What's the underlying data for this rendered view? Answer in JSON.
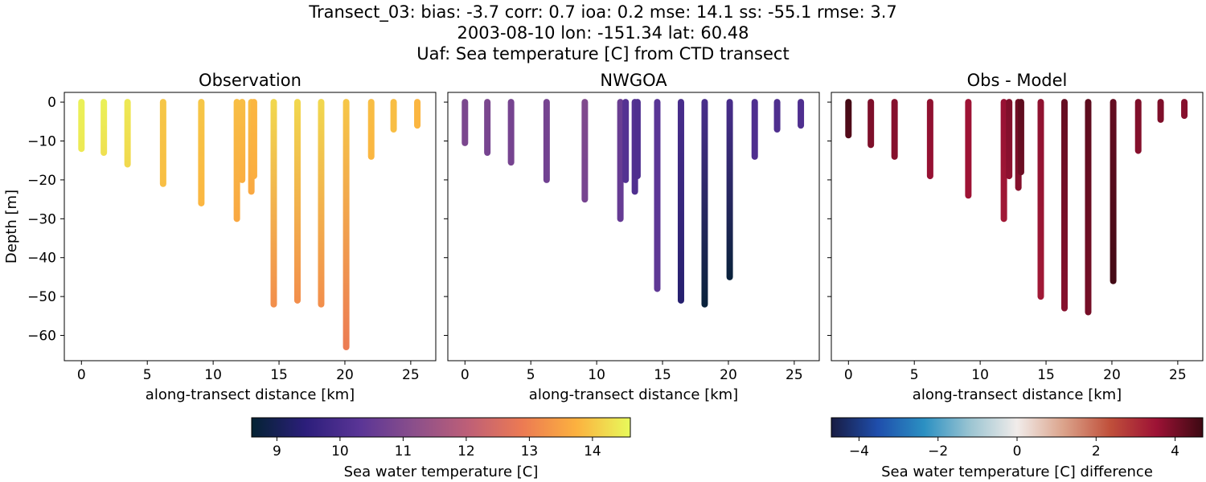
{
  "figure": {
    "title_lines": [
      "Transect_03: bias: -3.7  corr: 0.7  ioa: 0.2  mse: 14.1  ss: -55.1  rmse: 3.7",
      "2003-08-10 lon: -151.34 lat: 60.48",
      "Uaf: Sea temperature [C] from CTD transect"
    ]
  },
  "chart_data": [
    {
      "type": "scatter",
      "panel": "observation",
      "title": "Observation",
      "xlabel": "along-transect distance [km]",
      "ylabel": "Depth [m]",
      "xlim": [
        -1.3,
        26.9
      ],
      "ylim": [
        -66.5,
        2.5
      ],
      "xticks": [
        0,
        5,
        10,
        15,
        20,
        25
      ],
      "yticks": [
        0,
        -10,
        -20,
        -30,
        -40,
        -50,
        -60
      ],
      "colormap": "thermal",
      "clim": [
        8.6,
        14.6
      ],
      "casts": [
        {
          "x": 0.0,
          "max_depth": 12,
          "temp": [
            14.5,
            14.4
          ]
        },
        {
          "x": 1.7,
          "max_depth": 13,
          "temp": [
            14.5,
            14.3
          ]
        },
        {
          "x": 3.5,
          "max_depth": 16,
          "temp": [
            14.4,
            14.2
          ]
        },
        {
          "x": 6.2,
          "max_depth": 21,
          "temp": [
            14.0,
            13.9
          ]
        },
        {
          "x": 9.1,
          "max_depth": 26,
          "temp": [
            14.0,
            13.8
          ]
        },
        {
          "x": 11.8,
          "max_depth": 30,
          "temp": [
            13.9,
            13.6
          ]
        },
        {
          "x": 12.2,
          "max_depth": 20,
          "temp": [
            13.9,
            13.7
          ]
        },
        {
          "x": 12.9,
          "max_depth": 23,
          "temp": [
            13.9,
            13.6
          ]
        },
        {
          "x": 13.1,
          "max_depth": 19,
          "temp": [
            13.8,
            13.7
          ]
        },
        {
          "x": 14.6,
          "max_depth": 52,
          "temp": [
            14.2,
            13.2
          ]
        },
        {
          "x": 16.4,
          "max_depth": 51,
          "temp": [
            14.2,
            13.2
          ]
        },
        {
          "x": 18.2,
          "max_depth": 52,
          "temp": [
            14.2,
            13.2
          ]
        },
        {
          "x": 20.1,
          "max_depth": 63,
          "temp": [
            14.0,
            12.9
          ]
        },
        {
          "x": 22.0,
          "max_depth": 14,
          "temp": [
            13.9,
            13.8
          ]
        },
        {
          "x": 23.7,
          "max_depth": 7,
          "temp": [
            13.9,
            13.9
          ]
        },
        {
          "x": 25.5,
          "max_depth": 6,
          "temp": [
            13.8,
            13.8
          ]
        }
      ]
    },
    {
      "type": "scatter",
      "panel": "model",
      "title": "NWGOA",
      "xlabel": "along-transect distance [km]",
      "ylabel": "",
      "xlim": [
        -1.3,
        26.9
      ],
      "ylim": [
        -66.5,
        2.5
      ],
      "xticks": [
        0,
        5,
        10,
        15,
        20,
        25
      ],
      "colormap": "thermal",
      "clim": [
        8.6,
        14.6
      ],
      "casts": [
        {
          "x": 0.0,
          "max_depth": 10.5,
          "temp": [
            10.9,
            10.9
          ]
        },
        {
          "x": 1.7,
          "max_depth": 13,
          "temp": [
            10.9,
            10.8
          ]
        },
        {
          "x": 3.5,
          "max_depth": 15.5,
          "temp": [
            10.8,
            10.8
          ]
        },
        {
          "x": 6.2,
          "max_depth": 20,
          "temp": [
            10.8,
            10.7
          ]
        },
        {
          "x": 9.1,
          "max_depth": 25,
          "temp": [
            11.0,
            10.8
          ]
        },
        {
          "x": 11.8,
          "max_depth": 30,
          "temp": [
            10.6,
            10.5
          ]
        },
        {
          "x": 12.2,
          "max_depth": 20,
          "temp": [
            10.2,
            10.2
          ]
        },
        {
          "x": 12.9,
          "max_depth": 23,
          "temp": [
            10.2,
            10.1
          ]
        },
        {
          "x": 13.1,
          "max_depth": 19,
          "temp": [
            10.1,
            10.1
          ]
        },
        {
          "x": 14.6,
          "max_depth": 48,
          "temp": [
            10.3,
            10.4
          ]
        },
        {
          "x": 16.4,
          "max_depth": 51,
          "temp": [
            10.0,
            9.3
          ]
        },
        {
          "x": 18.2,
          "max_depth": 52,
          "temp": [
            10.0,
            8.7
          ]
        },
        {
          "x": 20.1,
          "max_depth": 45,
          "temp": [
            10.0,
            8.7
          ]
        },
        {
          "x": 22.0,
          "max_depth": 14,
          "temp": [
            10.1,
            10.1
          ]
        },
        {
          "x": 23.7,
          "max_depth": 7,
          "temp": [
            10.1,
            10.1
          ]
        },
        {
          "x": 25.5,
          "max_depth": 6,
          "temp": [
            10.1,
            10.1
          ]
        }
      ]
    },
    {
      "type": "scatter",
      "panel": "difference",
      "title": "Obs - Model",
      "xlabel": "along-transect distance [km]",
      "ylabel": "",
      "xlim": [
        -1.3,
        26.9
      ],
      "ylim": [
        -66.5,
        2.5
      ],
      "xticks": [
        0,
        5,
        10,
        15,
        20,
        25
      ],
      "colormap": "balance",
      "clim": [
        -4.7,
        4.7
      ],
      "casts": [
        {
          "x": 0.0,
          "max_depth": 8.5,
          "temp": [
            4.6,
            4.4
          ]
        },
        {
          "x": 1.7,
          "max_depth": 11,
          "temp": [
            3.9,
            3.9
          ]
        },
        {
          "x": 3.5,
          "max_depth": 14,
          "temp": [
            3.8,
            3.8
          ]
        },
        {
          "x": 6.2,
          "max_depth": 19,
          "temp": [
            3.7,
            3.6
          ]
        },
        {
          "x": 9.1,
          "max_depth": 24,
          "temp": [
            3.5,
            3.5
          ]
        },
        {
          "x": 11.8,
          "max_depth": 30,
          "temp": [
            3.6,
            3.4
          ]
        },
        {
          "x": 12.2,
          "max_depth": 19,
          "temp": [
            3.9,
            3.7
          ]
        },
        {
          "x": 12.9,
          "max_depth": 22,
          "temp": [
            4.1,
            3.8
          ]
        },
        {
          "x": 13.1,
          "max_depth": 18,
          "temp": [
            4.3,
            4.1
          ]
        },
        {
          "x": 14.6,
          "max_depth": 50,
          "temp": [
            3.7,
            3.4
          ]
        },
        {
          "x": 16.4,
          "max_depth": 53,
          "temp": [
            4.2,
            3.8
          ]
        },
        {
          "x": 18.2,
          "max_depth": 54,
          "temp": [
            4.3,
            4.0
          ]
        },
        {
          "x": 20.1,
          "max_depth": 46,
          "temp": [
            4.2,
            4.6
          ]
        },
        {
          "x": 22.0,
          "max_depth": 12.5,
          "temp": [
            3.9,
            3.8
          ]
        },
        {
          "x": 23.7,
          "max_depth": 4.5,
          "temp": [
            3.9,
            3.9
          ]
        },
        {
          "x": 25.5,
          "max_depth": 3.5,
          "temp": [
            3.8,
            3.8
          ]
        }
      ]
    }
  ],
  "colorbars": [
    {
      "label": "Sea water temperature [C]",
      "range": [
        8.6,
        14.6
      ],
      "ticks": [
        9,
        10,
        11,
        12,
        13,
        14
      ],
      "colormap": "thermal"
    },
    {
      "label": "Sea water temperature [C] difference",
      "range": [
        -4.7,
        4.7
      ],
      "ticks": [
        -4,
        -2,
        0,
        2,
        4
      ],
      "colormap": "balance"
    }
  ],
  "colormaps": {
    "thermal": [
      "#042333",
      "#2c1e7b",
      "#5a3596",
      "#8b4f8b",
      "#be5f77",
      "#ec7a53",
      "#fcb13f",
      "#e8fa5b"
    ],
    "balance": [
      "#181c43",
      "#1f4eac",
      "#2b90c2",
      "#9cc5d2",
      "#f1ecea",
      "#dba38b",
      "#c0503b",
      "#9d1235",
      "#3c0912"
    ]
  }
}
